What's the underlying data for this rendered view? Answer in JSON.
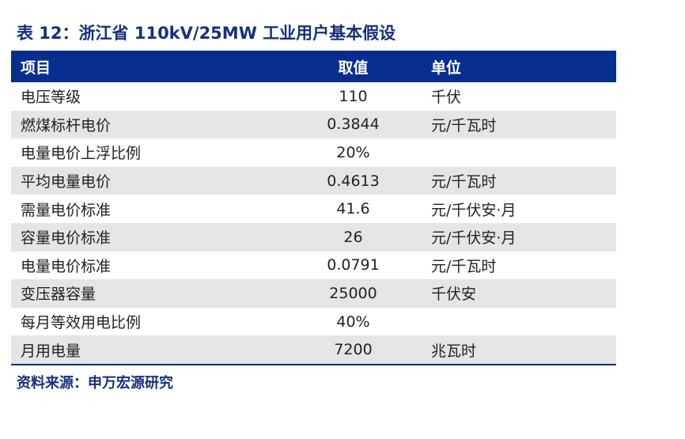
{
  "title": "表 12：浙江省 110kV/25MW 工业用户基本假设",
  "table": {
    "headers": {
      "item": "项目",
      "value": "取值",
      "unit": "单位"
    },
    "rows": [
      {
        "item": "电压等级",
        "value": "110",
        "unit": "千伏"
      },
      {
        "item": "燃煤标杆电价",
        "value": "0.3844",
        "unit": "元/千瓦时"
      },
      {
        "item": "电量电价上浮比例",
        "value": "20%",
        "unit": ""
      },
      {
        "item": "平均电量电价",
        "value": "0.4613",
        "unit": "元/千瓦时"
      },
      {
        "item": "需量电价标准",
        "value": "41.6",
        "unit": "元/千伏安·月"
      },
      {
        "item": "容量电价标准",
        "value": "26",
        "unit": "元/千伏安·月"
      },
      {
        "item": "电量电价标准",
        "value": "0.0791",
        "unit": "元/千瓦时"
      },
      {
        "item": "变压器容量",
        "value": "25000",
        "unit": "千伏安"
      },
      {
        "item": "每月等效用电比例",
        "value": "40%",
        "unit": ""
      },
      {
        "item": "月用电量",
        "value": "7200",
        "unit": "兆瓦时"
      }
    ]
  },
  "source": "资料来源：申万宏源研究",
  "colors": {
    "header_bg": "#072e8f",
    "title_text": "#16307f",
    "stripe": "#e5e5e5"
  }
}
